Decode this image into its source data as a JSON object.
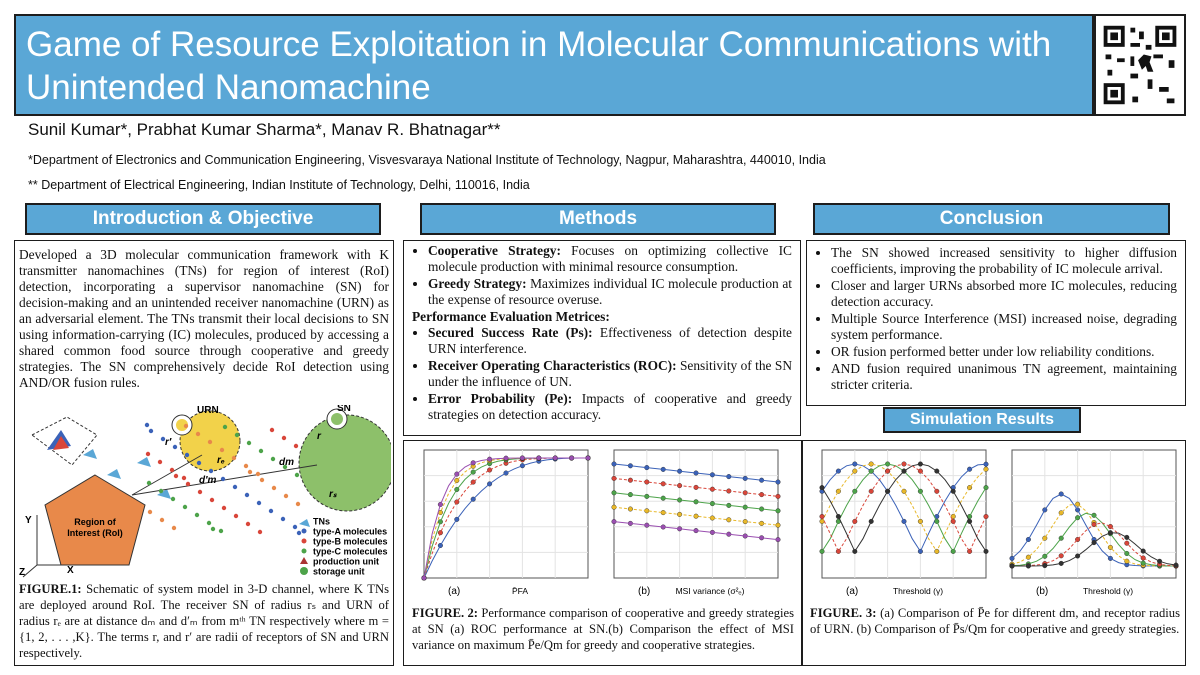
{
  "header": {
    "title": "Game of Resource Exploitation in Molecular Communications with Unintended Nanomachine",
    "authors": "Sunil Kumar*, Prabhat Kumar Sharma*, Manav R. Bhatnagar**",
    "affiliations": [
      "*Department of Electronics and Communication Engineering, Visvesvaraya National Institute of Technology, Nagpur, Maharashtra, 440010, India",
      "** Department of Electrical Engineering, Indian Institute of Technology, Delhi, 110016, India"
    ]
  },
  "intro": {
    "heading": "Introduction & Objective",
    "paragraph": "Developed a 3D molecular communication framework with K transmitter nanomachines (TNs) for region of interest (RoI) detection, incorporating a supervisor nanomachine (SN) for decision-making and an unintended receiver nanomachine (URN) as an adversarial element. The TNs transmit their local decisions to SN using information-carrying (IC) molecules, produced by accessing a shared common food source through cooperative and greedy strategies. The SN comprehensively decide RoI detection using AND/OR fusion rules.",
    "schematic": {
      "labels": [
        "URN",
        "SN",
        "r′",
        "r",
        "d′m",
        "rₑ",
        "dm",
        "rₛ",
        "Region of Interest (RoI)",
        "Y",
        "X",
        "Z"
      ],
      "legend": [
        "TNs",
        "type-A molecules",
        "type-B molecules",
        "type-C molecules",
        "production unit",
        "storage unit"
      ]
    },
    "caption": {
      "label": "FIGURE.1:",
      "text": "Schematic of system model in 3-D channel, where K TNs are deployed around RoI. The receiver SN of radius rₛ and URN of radius rₑ are at distance dₘ and d′ₘ from mᵗʰ TN respectively where m ={1, 2, . . . ,K}. The terms r, and r′ are radii of receptors of SN and URN respectively."
    }
  },
  "methods": {
    "heading": "Methods",
    "strategies": [
      {
        "label": "Cooperative Strategy:",
        "text": "Focuses on optimizing collective IC molecule production with minimal resource consumption."
      },
      {
        "label": "Greedy Strategy:",
        "text": "Maximizes individual IC molecule production at the expense of resource overuse."
      }
    ],
    "subheading": "Performance Evaluation Metrices:",
    "metrics": [
      {
        "label": "Secured Success Rate (Ps):",
        "text": "Effectiveness of detection despite URN interference."
      },
      {
        "label": "Receiver Operating Characteristics (ROC):",
        "text": "Sensitivity of the SN under the influence of UN."
      },
      {
        "label": "Error Probability (Pe):",
        "text": "Impacts of cooperative and greedy strategies on detection accuracy."
      }
    ]
  },
  "conclusion": {
    "heading": "Conclusion",
    "bullets": [
      "The SN showed increased sensitivity to higher diffusion coefficients, improving the probability of IC molecule arrival.",
      "Closer and larger URNs absorbed more IC molecules, reducing detection accuracy.",
      "Multiple Source Interference (MSI) increased noise, degrading system performance.",
      "OR fusion performed better under low reliability conditions.",
      "AND fusion required unanimous TN agreement, maintaining stricter criteria."
    ]
  },
  "results": {
    "heading": "Simulation Results",
    "figures": [
      {
        "panels": [
          {
            "label": "(a)",
            "xlabel": "P̄FA"
          },
          {
            "label": "(b)",
            "xlabel": "MSI variance (σ²ₑ)"
          }
        ],
        "caption": {
          "label": "FIGURE. 2:",
          "text": "Performance comparison of cooperative and greedy strategies at SN (a) ROC performance at SN.(b) Comparison the effect of MSI variance on maximum P̄e/Qm for greedy and cooperative strategies."
        }
      },
      {
        "panels": [
          {
            "label": "(a)",
            "xlabel": "Threshold (γ)"
          },
          {
            "label": "(b)",
            "xlabel": "Threshold (γ)"
          }
        ],
        "caption": {
          "label": "FIGURE. 3:",
          "text": "(a) Comparison of P̄e for different dm, and receptor radius of URN. (b) Comparison of P̄s/Qm for cooperative and greedy strategies."
        }
      }
    ]
  }
}
